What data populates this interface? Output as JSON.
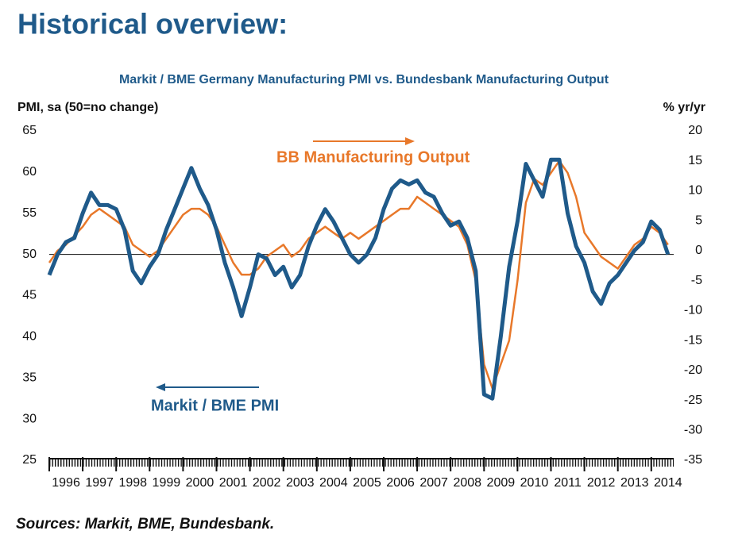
{
  "header": {
    "title": "Historical overview:"
  },
  "chart_data": {
    "type": "line",
    "title": "Markit / BME Germany Manufacturing PMI vs. Bundesbank Manufacturing Output",
    "y_label": "PMI, sa (50=no change)",
    "y2_label": "% yr/yr",
    "x": [
      1996.0,
      1996.25,
      1996.5,
      1996.75,
      1997.0,
      1997.25,
      1997.5,
      1997.75,
      1998.0,
      1998.25,
      1998.5,
      1998.75,
      1999.0,
      1999.25,
      1999.5,
      1999.75,
      2000.0,
      2000.25,
      2000.5,
      2000.75,
      2001.0,
      2001.25,
      2001.5,
      2001.75,
      2002.0,
      2002.25,
      2002.5,
      2002.75,
      2003.0,
      2003.25,
      2003.5,
      2003.75,
      2004.0,
      2004.25,
      2004.5,
      2004.75,
      2005.0,
      2005.25,
      2005.5,
      2005.75,
      2006.0,
      2006.25,
      2006.5,
      2006.75,
      2007.0,
      2007.25,
      2007.5,
      2007.75,
      2008.0,
      2008.25,
      2008.5,
      2008.75,
      2009.0,
      2009.25,
      2009.5,
      2009.75,
      2010.0,
      2010.25,
      2010.5,
      2010.75,
      2011.0,
      2011.25,
      2011.5,
      2011.75,
      2012.0,
      2012.25,
      2012.5,
      2012.75,
      2013.0,
      2013.25,
      2013.5,
      2013.75,
      2014.0,
      2014.25,
      2014.5
    ],
    "series": [
      {
        "name": "Markit / BME PMI",
        "color": "#1f5a8a",
        "axis": "y",
        "values": [
          47.5,
          50,
          51.5,
          52,
          55,
          57.5,
          56,
          56,
          55.5,
          53,
          48,
          46.5,
          48.5,
          50,
          53,
          55.5,
          58,
          60.5,
          58,
          56,
          53,
          49,
          46,
          42.5,
          46,
          50,
          49.5,
          47.5,
          48.5,
          46,
          47.5,
          51,
          53.5,
          55.5,
          54,
          52,
          50,
          49,
          50,
          52,
          55.5,
          58,
          59,
          58.5,
          59,
          57.5,
          57,
          55,
          53.5,
          54,
          52,
          48,
          33,
          32.5,
          40,
          48.5,
          54,
          61,
          59,
          57,
          61.5,
          61.5,
          55,
          51,
          49,
          45.5,
          44,
          46.5,
          47.5,
          49,
          50.5,
          51.5,
          54,
          53,
          50
        ]
      },
      {
        "name": "BB Manufacturing Output",
        "color": "#e8782a",
        "axis": "y2",
        "values": [
          -2,
          0,
          1,
          2.5,
          4,
          6,
          7,
          6,
          5,
          4,
          1,
          0,
          -1,
          0,
          2,
          4,
          6,
          7,
          7,
          6,
          4,
          1,
          -2,
          -4,
          -4,
          -3,
          -1,
          0,
          1,
          -1,
          0,
          2,
          3,
          4,
          3,
          2,
          3,
          2,
          3,
          4,
          5,
          6,
          7,
          7,
          9,
          8,
          7,
          6,
          5,
          4,
          1,
          -5,
          -19,
          -23,
          -19,
          -15,
          -5,
          8,
          12,
          11,
          13,
          15,
          13,
          9,
          3,
          1,
          -1,
          -2,
          -3,
          -1,
          1,
          2,
          4,
          3,
          1
        ]
      }
    ],
    "hline": 50,
    "xlim": [
      1996,
      2014.67
    ],
    "xticks": [
      1996,
      1997,
      1998,
      1999,
      2000,
      2001,
      2002,
      2003,
      2004,
      2005,
      2006,
      2007,
      2008,
      2009,
      2010,
      2011,
      2012,
      2013,
      2014
    ],
    "ylim": [
      25,
      65
    ],
    "yticks": [
      25,
      30,
      35,
      40,
      45,
      50,
      55,
      60,
      65
    ],
    "y2lim": [
      -35,
      20
    ],
    "y2ticks": [
      -35,
      -30,
      -25,
      -20,
      -15,
      -10,
      -5,
      0,
      5,
      10,
      15,
      20
    ],
    "grid": false
  },
  "footer": {
    "source": "Sources: Markit, BME, Bundesbank."
  }
}
